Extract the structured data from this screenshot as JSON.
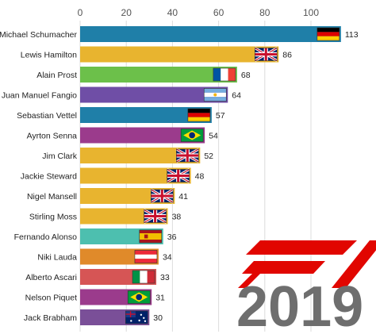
{
  "chart_data": {
    "type": "bar",
    "orientation": "horizontal",
    "title": "",
    "xlabel": "",
    "ylabel": "",
    "xlim": [
      0,
      115
    ],
    "xticks": [
      0,
      20,
      40,
      60,
      80,
      100
    ],
    "grid": true,
    "categories": [
      "Michael Schumacher",
      "Lewis Hamilton",
      "Alain Prost",
      "Juan Manuel Fangio",
      "Sebastian Vettel",
      "Ayrton Senna",
      "Jim Clark",
      "Jackie Steward",
      "Nigel Mansell",
      "Stirling Moss",
      "Fernando Alonso",
      "Niki Lauda",
      "Alberto Ascari",
      "Nelson Piquet",
      "Jack Brabham"
    ],
    "values": [
      113,
      86,
      68,
      64,
      57,
      54,
      52,
      48,
      41,
      38,
      36,
      34,
      33,
      31,
      30
    ],
    "colors": [
      "#1f7fa8",
      "#e8b42f",
      "#6cc04a",
      "#6f4ea6",
      "#1f7fa8",
      "#9b3b8c",
      "#e8b42f",
      "#e8b42f",
      "#e8b42f",
      "#e8b42f",
      "#4dbfaf",
      "#e08a2a",
      "#d65555",
      "#9b3b8c",
      "#7a4f98"
    ],
    "flags": [
      "germany-flag",
      "uk-flag",
      "france-flag",
      "argentina-flag",
      "germany-flag",
      "brazil-flag",
      "uk-flag",
      "uk-flag",
      "uk-flag",
      "uk-flag",
      "spain-flag",
      "austria-flag",
      "italy-flag",
      "brazil-flag",
      "australia-flag"
    ]
  },
  "overlay": {
    "year": "2019",
    "logo": "f1-logo",
    "logo_color": "#e10600",
    "year_color": "#6e6e6e"
  }
}
